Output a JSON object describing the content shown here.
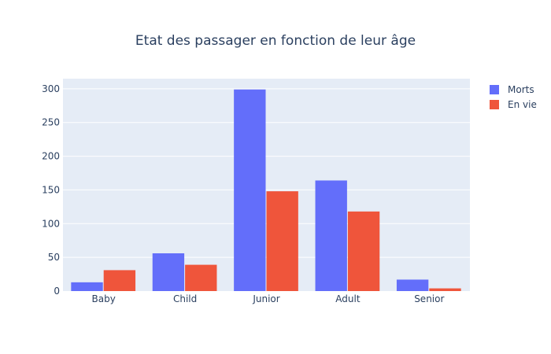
{
  "chart_data": {
    "type": "bar",
    "title": "Etat des passager en fonction de leur âge",
    "xlabel": "",
    "ylabel": "",
    "categories": [
      "Baby",
      "Child",
      "Junior",
      "Adult",
      "Senior"
    ],
    "series": [
      {
        "name": "Morts",
        "values": [
          13,
          56,
          299,
          164,
          17
        ],
        "color": "#636efa"
      },
      {
        "name": "En vie",
        "values": [
          31,
          39,
          148,
          118,
          4
        ],
        "color": "#ef553b"
      }
    ],
    "ylim": [
      0,
      315
    ],
    "yticks": [
      0,
      50,
      100,
      150,
      200,
      250,
      300
    ],
    "grid": true,
    "legend_position": "top-right",
    "background_color": "#e5ecf6"
  }
}
